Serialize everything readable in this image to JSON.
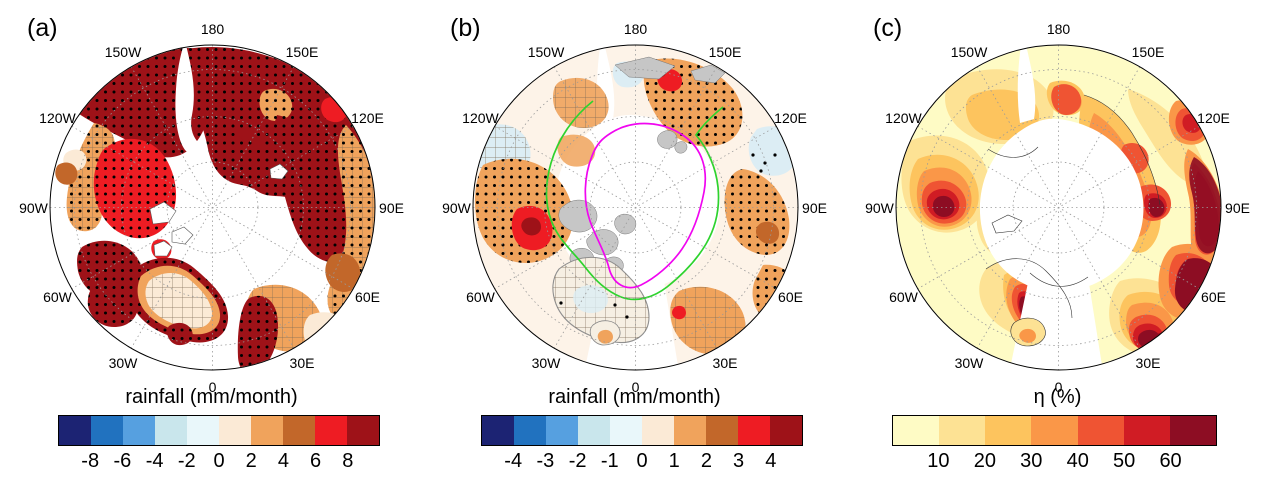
{
  "figure": {
    "background": "#ffffff"
  },
  "panels": [
    {
      "label": "(a)",
      "title": "rainfall (mm/month)",
      "meridians": [
        "180",
        "150W",
        "150E",
        "120W",
        "120E",
        "90W",
        "90E",
        "60W",
        "60E",
        "30W",
        "30E",
        "0"
      ],
      "colorbar": {
        "colors": [
          "#1c2373",
          "#2172bf",
          "#56a0e0",
          "#c9e6ec",
          "#e9f7fa",
          "#fbead6",
          "#f0a35c",
          "#c2672a",
          "#ee1c23",
          "#9e1218"
        ],
        "ticks": [
          "-8",
          "-6",
          "-4",
          "-2",
          "0",
          "2",
          "4",
          "6",
          "8"
        ]
      }
    },
    {
      "label": "(b)",
      "title": "rainfall (mm/month)",
      "meridians": [
        "180",
        "150W",
        "150E",
        "120W",
        "120E",
        "90W",
        "90E",
        "60W",
        "60E",
        "30W",
        "30E",
        "0"
      ],
      "colorbar": {
        "colors": [
          "#1c2373",
          "#2172bf",
          "#56a0e0",
          "#c9e6ec",
          "#e9f7fa",
          "#fbead6",
          "#f0a35c",
          "#c2672a",
          "#ee1c23",
          "#9e1218"
        ],
        "ticks": [
          "-4",
          "-3",
          "-2",
          "-1",
          "0",
          "1",
          "2",
          "3",
          "4"
        ]
      }
    },
    {
      "label": "(c)",
      "title": "η (%)",
      "meridians": [
        "180",
        "150W",
        "150E",
        "120W",
        "120E",
        "90W",
        "90E",
        "60W",
        "60E",
        "30W",
        "30E",
        "0"
      ],
      "colorbar": {
        "colors": [
          "#fefbc5",
          "#fde294",
          "#fdc45e",
          "#fa9748",
          "#ef5433",
          "#d01c24",
          "#8d0d23"
        ],
        "ticks": [
          "10",
          "20",
          "30",
          "40",
          "50",
          "60"
        ]
      }
    }
  ],
  "chart_data": [
    {
      "panel": "a",
      "type": "heatmap",
      "projection": "north polar stereographic, pole centered, 0 meridian at bottom, 180 at top, dotted graticule circles and 30-degree meridians",
      "variable": "rainfall (mm/month)",
      "title": "rainfall (mm/month)",
      "colorbar_levels": [
        -8,
        -6,
        -4,
        -2,
        0,
        2,
        4,
        6,
        8
      ],
      "colorbar_colors": [
        "#1c2373",
        "#2172bf",
        "#56a0e0",
        "#c9e6ec",
        "#e9f7fa",
        "#fbead6",
        "#f0a35c",
        "#c2672a",
        "#ee1c23",
        "#9e1218"
      ],
      "meridian_labels": [
        "180",
        "150W",
        "150E",
        "120W",
        "120E",
        "90W",
        "90E",
        "60W",
        "60E",
        "30W",
        "30E",
        "0"
      ],
      "overlays": [
        "black stippling over most shaded land",
        "cross-hatching over western Canada band, Siberian outer band and Greenland interior"
      ],
      "regions": [
        {
          "area": "Alaska and eastern Siberia across 180",
          "value": "> 8 (dark red), stippled"
        },
        {
          "area": "western Canada outer band near 120W-150W",
          "value": "2-4 (tan/orange), hatched + stippled, small 0-2 cream spot at edge"
        },
        {
          "area": "central Canada",
          "value": "6-8 (red), stippled"
        },
        {
          "area": "Canadian archipelago / Hudson area",
          "value": "> 8 (dark red), stippled"
        },
        {
          "area": "Greenland rim, Iceland, Scandinavia",
          "value": "> 8 (dark red), stippled"
        },
        {
          "area": "Greenland interior",
          "value": "0-2 (pale cream), cross-hatched"
        },
        {
          "area": "central Siberia inner band 90E-150E",
          "value": "> 8 (dark red), stippled"
        },
        {
          "area": "Siberia outer band 60E-120E",
          "value": "2-6 (orange/brown), hatched"
        },
        {
          "area": "central Arctic Ocean",
          "value": "white / no shading"
        }
      ]
    },
    {
      "panel": "b",
      "type": "heatmap",
      "projection": "north polar stereographic, same layout as panel a",
      "variable": "rainfall (mm/month)",
      "title": "rainfall (mm/month)",
      "colorbar_levels": [
        -4,
        -3,
        -2,
        -1,
        0,
        1,
        2,
        3,
        4
      ],
      "colorbar_colors": [
        "#1c2373",
        "#2172bf",
        "#56a0e0",
        "#c9e6ec",
        "#e9f7fa",
        "#fbead6",
        "#f0a35c",
        "#c2672a",
        "#ee1c23",
        "#9e1218"
      ],
      "meridian_labels": [
        "180",
        "150W",
        "150E",
        "120W",
        "120E",
        "90W",
        "90E",
        "60W",
        "60E",
        "30W",
        "30E",
        "0"
      ],
      "overlays": [
        "black stippling on orange patches",
        "cross-hatching on Greenland, Scandinavia and pale-blue patches",
        "magenta contour loop around central Arctic Ocean",
        "green contour line roughly parallel to the magenta one",
        "gray land fill along coasts"
      ],
      "regions": [
        {
          "area": "Chukotka / east Siberian coast",
          "value": "1-2 (orange) with small 3-4 red and >4 dark red spots, stippled"
        },
        {
          "area": "north-west Canada",
          "value": "1-2 (orange) with 3-4 red patch, stippled"
        },
        {
          "area": "central Siberia near 90E",
          "value": "1-2 (orange), stippled, small 2-3 brown spot"
        },
        {
          "area": "Scandinavia / NW Russia",
          "value": "1-2 (orange), cross-hatched with sparse dots"
        },
        {
          "area": "scattered patches near 120W and 120E",
          "value": "-1 to 0 (pale blue)"
        },
        {
          "area": "most remaining land",
          "value": "0-1 (very pale cream)"
        },
        {
          "area": "central Arctic Ocean",
          "value": "white / no shading"
        }
      ]
    },
    {
      "panel": "c",
      "type": "heatmap",
      "projection": "north polar stereographic, same layout as panel a",
      "variable": "eta (%)",
      "title": "η (%)",
      "colorbar_levels": [
        10,
        20,
        30,
        40,
        50,
        60
      ],
      "colorbar_colors": [
        "#fefbc5",
        "#fde294",
        "#fdc45e",
        "#fa9748",
        "#ef5433",
        "#d01c24",
        "#8d0d23"
      ],
      "meridian_labels": [
        "180",
        "150W",
        "150E",
        "120W",
        "120E",
        "90W",
        "90E",
        "60W",
        "60E",
        "30W",
        "30E",
        "0"
      ],
      "overlays": [
        "thin black coastlines"
      ],
      "regions": [
        {
          "area": "most land areas",
          "value": "< 10-20 (pale yellow)"
        },
        {
          "area": "north-west Canada / Yukon",
          "value": "40 to > 60 (red to dark maroon core)"
        },
        {
          "area": "Arctic coast of Siberia (Laptev/Taymyr)",
          "value": "30-50 with > 60 maroon spot near 90E"
        },
        {
          "area": "band along 60E-90E outer edge",
          "value": "> 60 (dark maroon)"
        },
        {
          "area": "Norway coast / 30E rim",
          "value": "50 to > 60 (red/dark maroon)"
        },
        {
          "area": "central Greenland",
          "value": "elongated 40 to > 60 streak (red/maroon)"
        },
        {
          "area": "Chukotka and upper-right spots",
          "value": "40-50 (orange-red)"
        },
        {
          "area": "ocean",
          "value": "white"
        }
      ]
    }
  ]
}
